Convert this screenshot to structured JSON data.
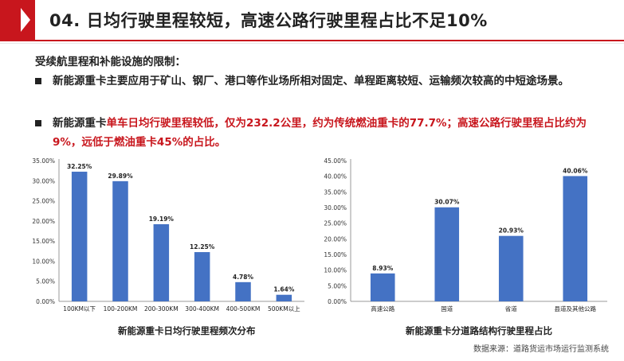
{
  "header": {
    "title": "04. 日均行驶里程较短，高速公路行驶里程占比不足10%",
    "accent_color": "#c8161d"
  },
  "intro": "受续航里程和补能设施的限制：",
  "bullets": [
    {
      "text": "新能源重卡主要应用于矿山、钢厂、港口等作业场所相对固定、单程距离较短、运输频次较高的中短途场景。"
    },
    {
      "prefix": "新能源重卡",
      "highlight": "单车日均行驶里程较低，仅为232.2公里，约为传统燃油重卡的77.7%；高速公路行驶里程占比约为9%，远低于燃油重卡45%的占比。"
    }
  ],
  "chart_data": [
    {
      "type": "bar",
      "title": "新能源重卡日均行驶里程频次分布",
      "categories": [
        "100KM以下",
        "100-200KM",
        "200-300KM",
        "300-400KM",
        "400-500KM",
        "500KM以上"
      ],
      "values": [
        32.25,
        29.89,
        19.19,
        12.25,
        4.78,
        1.64
      ],
      "data_labels": [
        "32.25%",
        "29.89%",
        "19.19%",
        "12.25%",
        "4.78%",
        "1.64%"
      ],
      "ylim": [
        0,
        35
      ],
      "yticks": [
        "0.00%",
        "5.00%",
        "10.00%",
        "15.00%",
        "20.00%",
        "25.00%",
        "30.00%",
        "35.00%"
      ],
      "bar_color": "#4472c4",
      "grid": false
    },
    {
      "type": "bar",
      "title": "新能源重卡分道路结构行驶里程占比",
      "categories": [
        "高速公路",
        "国道",
        "省道",
        "县道及其他公路"
      ],
      "values": [
        8.93,
        30.07,
        20.93,
        40.06
      ],
      "data_labels": [
        "8.93%",
        "30.07%",
        "20.93%",
        "40.06%"
      ],
      "ylim": [
        0,
        45
      ],
      "yticks": [
        "0.00%",
        "5.00%",
        "10.00%",
        "15.00%",
        "20.00%",
        "25.00%",
        "30.00%",
        "35.00%",
        "40.00%",
        "45.00%"
      ],
      "bar_color": "#4472c4",
      "grid": false
    }
  ],
  "source": "数据来源：道路货运市场运行监测系统"
}
